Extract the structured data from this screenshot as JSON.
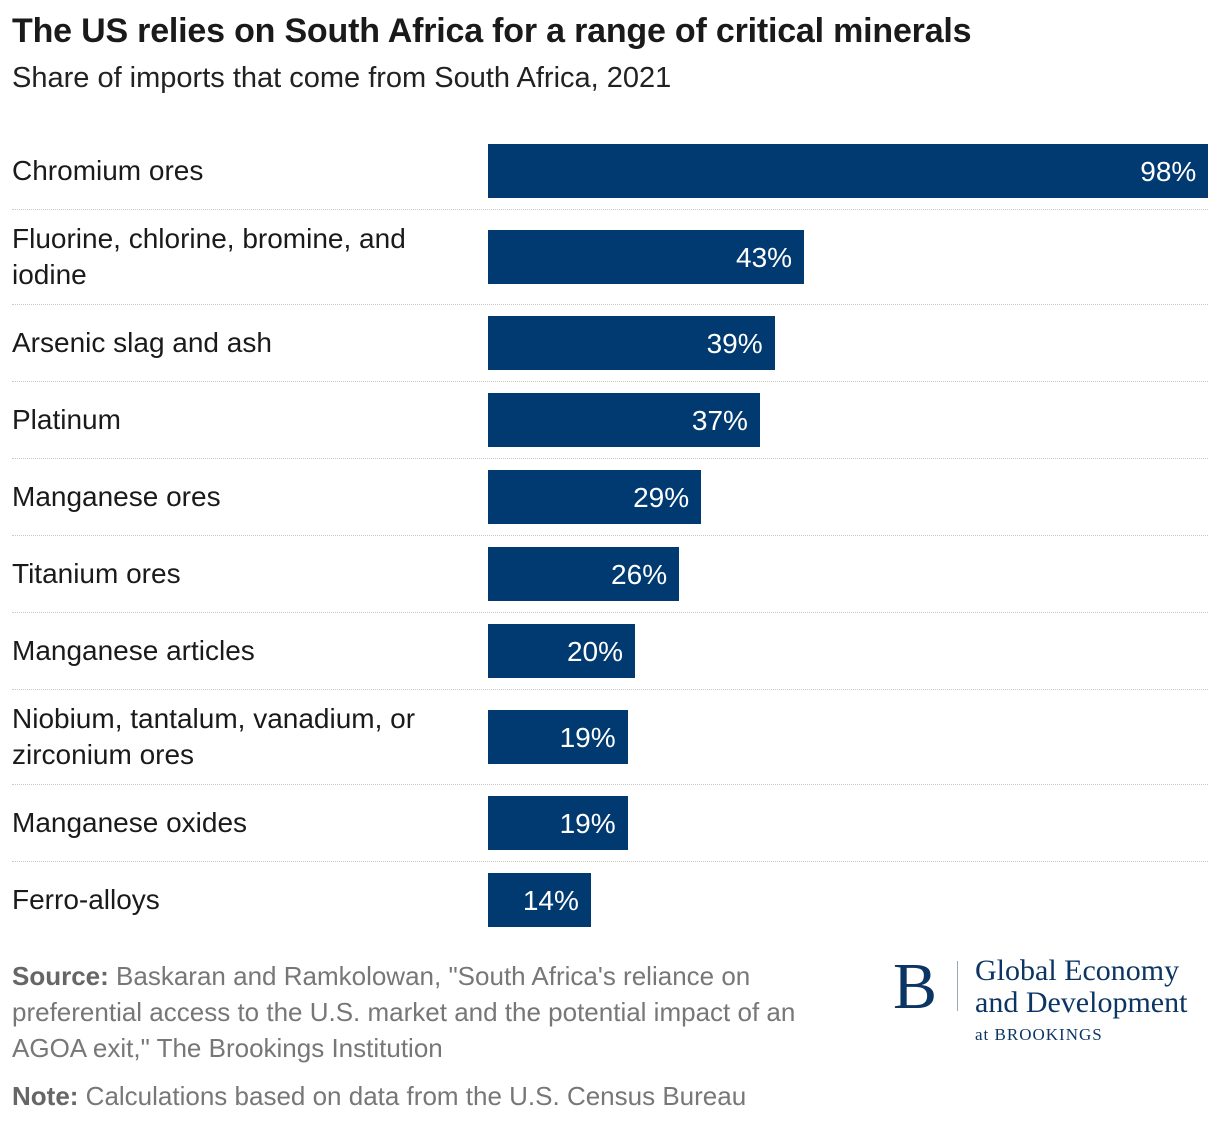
{
  "chart_data": {
    "type": "bar",
    "orientation": "horizontal",
    "title": "The US relies on South Africa for a range of critical minerals",
    "subtitle": "Share of imports that come from South Africa, 2021",
    "categories": [
      "Chromium ores",
      "Fluorine, chlorine, bromine, and iodine",
      "Arsenic slag and ash",
      "Platinum",
      "Manganese ores",
      "Titanium ores",
      "Manganese articles",
      "Niobium, tantalum, vanadium, or zirconium ores",
      "Manganese oxides",
      "Ferro-alloys"
    ],
    "values": [
      98,
      43,
      39,
      37,
      29,
      26,
      20,
      19,
      19,
      14
    ],
    "value_labels": [
      "98%",
      "43%",
      "39%",
      "37%",
      "29%",
      "26%",
      "20%",
      "19%",
      "19%",
      "14%"
    ],
    "xlim": [
      0,
      100
    ],
    "unit": "%",
    "bar_color": "#003a70",
    "grid": false
  },
  "footer": {
    "source_label": "Source:",
    "source_text": "Baskaran and Ramkolowan, \"South Africa's reliance on preferential access to the U.S. market and the potential impact of an AGOA exit,\" The Brookings Institution",
    "note_label": "Note:",
    "note_text": "Calculations based on data from the U.S. Census Bureau"
  },
  "logo": {
    "letter": "B",
    "line1": "Global Economy",
    "line2": "and Development",
    "line3": "at BROOKINGS"
  }
}
